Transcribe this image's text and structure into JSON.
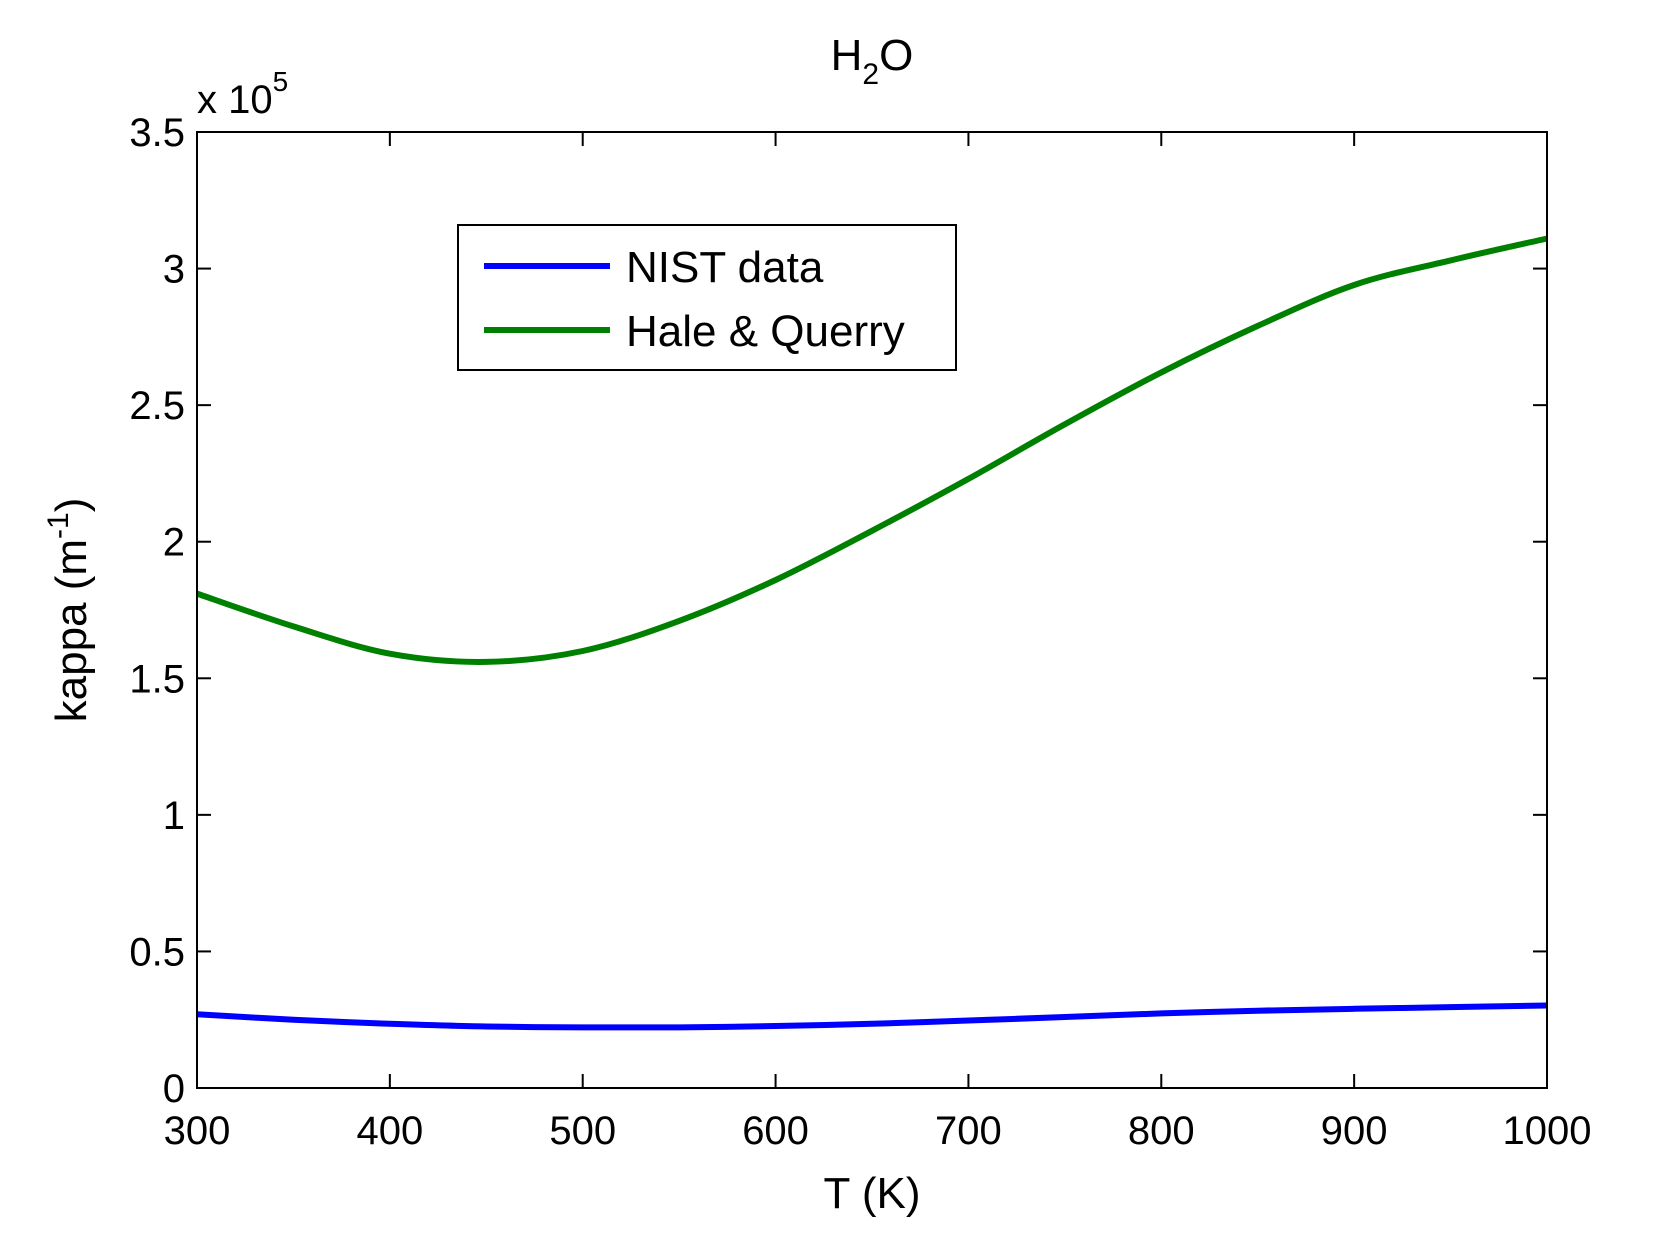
{
  "chart_data": {
    "type": "line",
    "title": {
      "main": "H",
      "sub": "2",
      "tail": "O"
    },
    "xlabel": "T (K)",
    "ylabel": {
      "main": "kappa (m",
      "sup": "-1",
      "tail": ")"
    },
    "y_multiplier": {
      "base": "x 10",
      "exp": "5"
    },
    "xlim": [
      300,
      1000
    ],
    "ylim": [
      0,
      3.5
    ],
    "xticks": [
      "300",
      "400",
      "500",
      "600",
      "700",
      "800",
      "900",
      "1000"
    ],
    "yticks": [
      "0",
      "0.5",
      "1",
      "1.5",
      "2",
      "2.5",
      "3",
      "3.5"
    ],
    "grid": false,
    "legend_position": "top-center",
    "x": [
      300,
      350,
      400,
      450,
      500,
      550,
      600,
      650,
      700,
      750,
      800,
      850,
      900,
      950,
      1000
    ],
    "series": [
      {
        "name": "NIST data",
        "color": "#0000ff",
        "values": [
          0.27,
          0.25,
          0.235,
          0.225,
          0.222,
          0.222,
          0.227,
          0.235,
          0.247,
          0.26,
          0.273,
          0.283,
          0.29,
          0.296,
          0.302
        ]
      },
      {
        "name": "Hale & Querry",
        "color": "#008000",
        "values": [
          1.81,
          1.69,
          1.59,
          1.56,
          1.6,
          1.71,
          1.86,
          2.04,
          2.23,
          2.43,
          2.62,
          2.79,
          2.94,
          3.03,
          3.11
        ]
      }
    ]
  }
}
